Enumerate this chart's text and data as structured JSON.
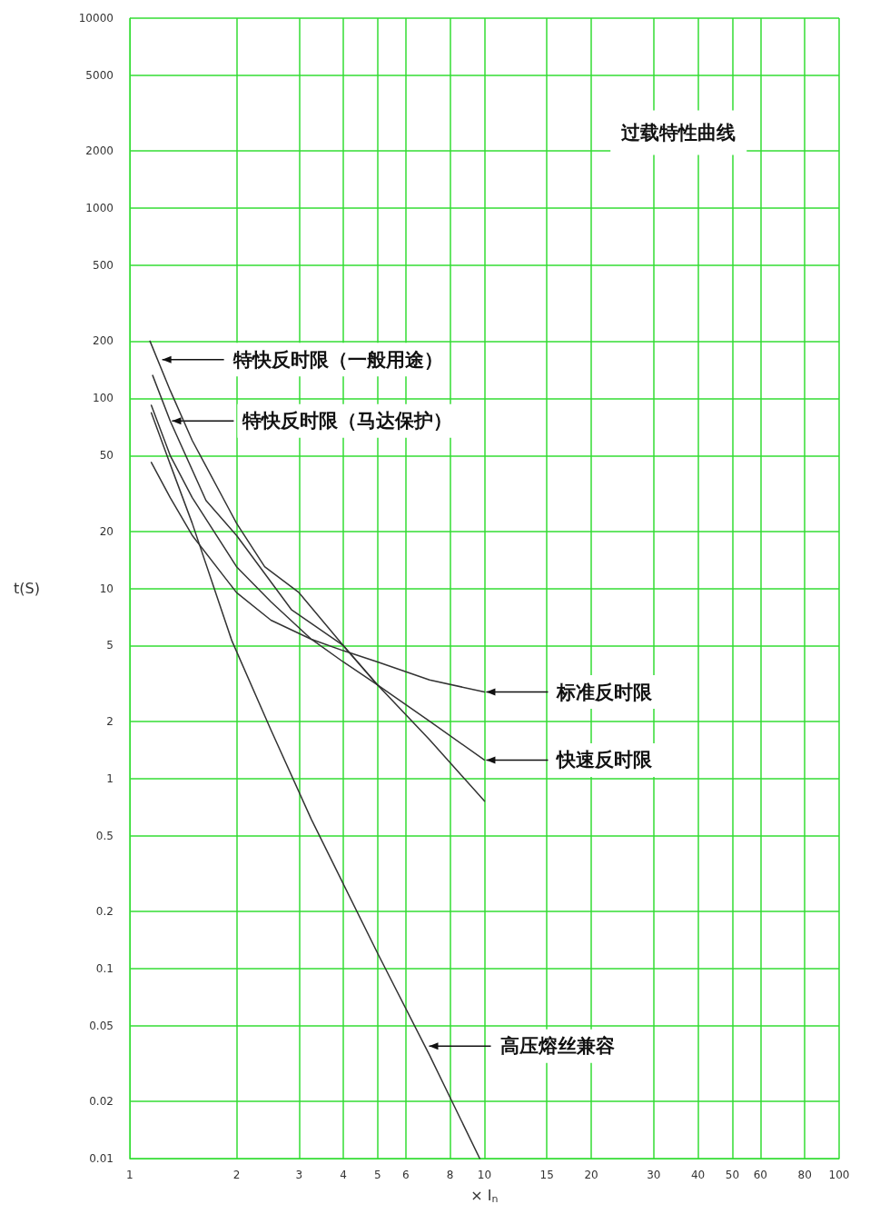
{
  "chart_data": {
    "type": "line",
    "title": "过载特性曲线",
    "xlabel": "× I$_{n}$",
    "ylabel": "t(S)",
    "log": "xy",
    "grid": true,
    "marker": "none",
    "line_style": "solid",
    "xlim": [
      1,
      100
    ],
    "ylim": [
      0.01,
      10000
    ],
    "xticks": [
      1,
      2,
      3,
      4,
      5,
      6,
      8,
      10,
      15,
      20,
      30,
      40,
      50,
      60,
      80,
      100
    ],
    "yticks": [
      0.01,
      0.02,
      0.05,
      0.1,
      0.2,
      0.5,
      1,
      2,
      5,
      10,
      20,
      50,
      100,
      200,
      500,
      1000,
      2000,
      5000,
      10000
    ],
    "series": [
      {
        "color": "#333333",
        "x": [
          1.14,
          1.3,
          1.5,
          2,
          2.4,
          3,
          4,
          5,
          7,
          10
        ],
        "values": [
          200,
          110,
          60,
          22,
          13,
          9.5,
          5,
          3.1,
          1.6,
          0.76
        ]
      },
      {
        "color": "#333333",
        "x": [
          1.16,
          1.3,
          1.64,
          2,
          2.86,
          4,
          5
        ],
        "values": [
          132,
          76,
          29,
          19,
          7.7,
          5,
          3.1
        ]
      },
      {
        "color": "#333333",
        "x": [
          1.15,
          1.3,
          1.5,
          2,
          2.5,
          3.25,
          4,
          5,
          7,
          10
        ],
        "values": [
          92,
          50,
          30,
          13,
          8.5,
          5.4,
          4.1,
          3.1,
          2,
          1.25
        ]
      },
      {
        "color": "#333333",
        "x": [
          1.15,
          1.3,
          1.5,
          2,
          2.5,
          3.25,
          4,
          5,
          7,
          10
        ],
        "values": [
          46,
          30,
          19,
          9.5,
          6.8,
          5.4,
          4.7,
          4.1,
          3.3,
          2.85
        ]
      },
      {
        "color": "#333333",
        "x": [
          1.15,
          1.3,
          1.5,
          1.94,
          2.5,
          3.25,
          5,
          7,
          9.7
        ],
        "values": [
          84,
          45,
          22,
          5.3,
          1.8,
          0.61,
          0.12,
          0.035,
          0.01
        ]
      }
    ],
    "annotations": [
      {
        "text": "特快反时限（一般用途）",
        "x": 1.22,
        "y": 160
      },
      {
        "text": "特快反时限（马达保护）",
        "x": 1.3,
        "y": 76
      },
      {
        "text": "标准反时限",
        "x": 10,
        "y": 2.85
      },
      {
        "text": "快速反时限",
        "x": 10,
        "y": 1.25
      },
      {
        "text": "高压熔丝兼容",
        "x": 6.9,
        "y": 0.039
      }
    ]
  }
}
